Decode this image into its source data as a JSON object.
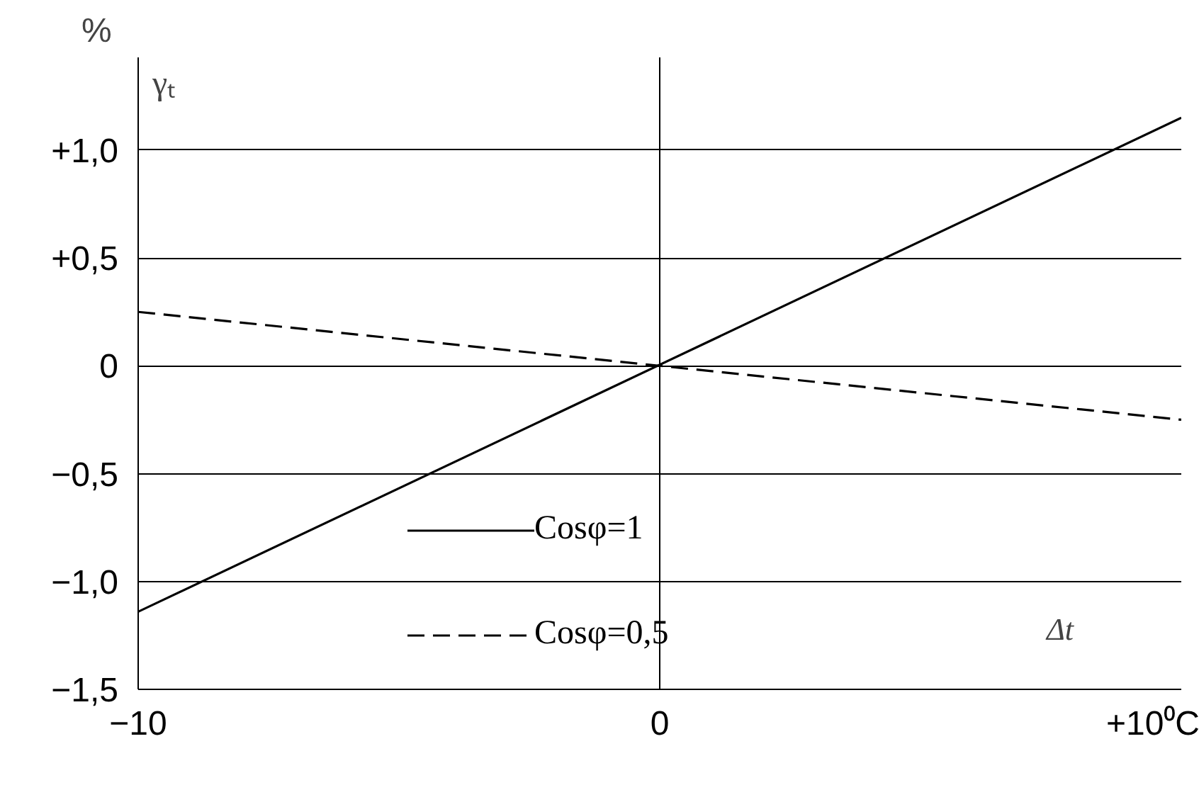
{
  "chart_data": {
    "type": "line",
    "ylabel": "%",
    "xlabel": "Δt",
    "annotations": [
      "γₜ"
    ],
    "x": [
      -10,
      10
    ],
    "series": [
      {
        "name": "Cosφ=1",
        "color": "#000000",
        "values": [
          -1.14,
          1.15
        ],
        "line_style": "solid"
      },
      {
        "name": "Cosφ=0,5",
        "color": "#000000",
        "values": [
          0.25,
          -0.25
        ],
        "line_style": "dashed"
      }
    ],
    "xlim": [
      -10,
      10
    ],
    "ylim": [
      -1.5,
      1.43
    ],
    "xticks": [
      {
        "value": -10,
        "label": "−10"
      },
      0,
      {
        "value": 10,
        "label": "+10⁰C"
      }
    ],
    "yticks": [
      {
        "value": -1.5,
        "label": "−1,5"
      },
      {
        "value": -1.0,
        "label": "−1,0"
      },
      {
        "value": -0.5,
        "label": "−0,5"
      },
      0,
      {
        "value": 0.5,
        "label": "+0,5"
      },
      {
        "value": 1.0,
        "label": "+1,0"
      }
    ],
    "grid": "y",
    "legend": "bottom",
    "marker": "none",
    "ref_lines": [
      {
        "axis": "x",
        "value": 0
      }
    ]
  }
}
